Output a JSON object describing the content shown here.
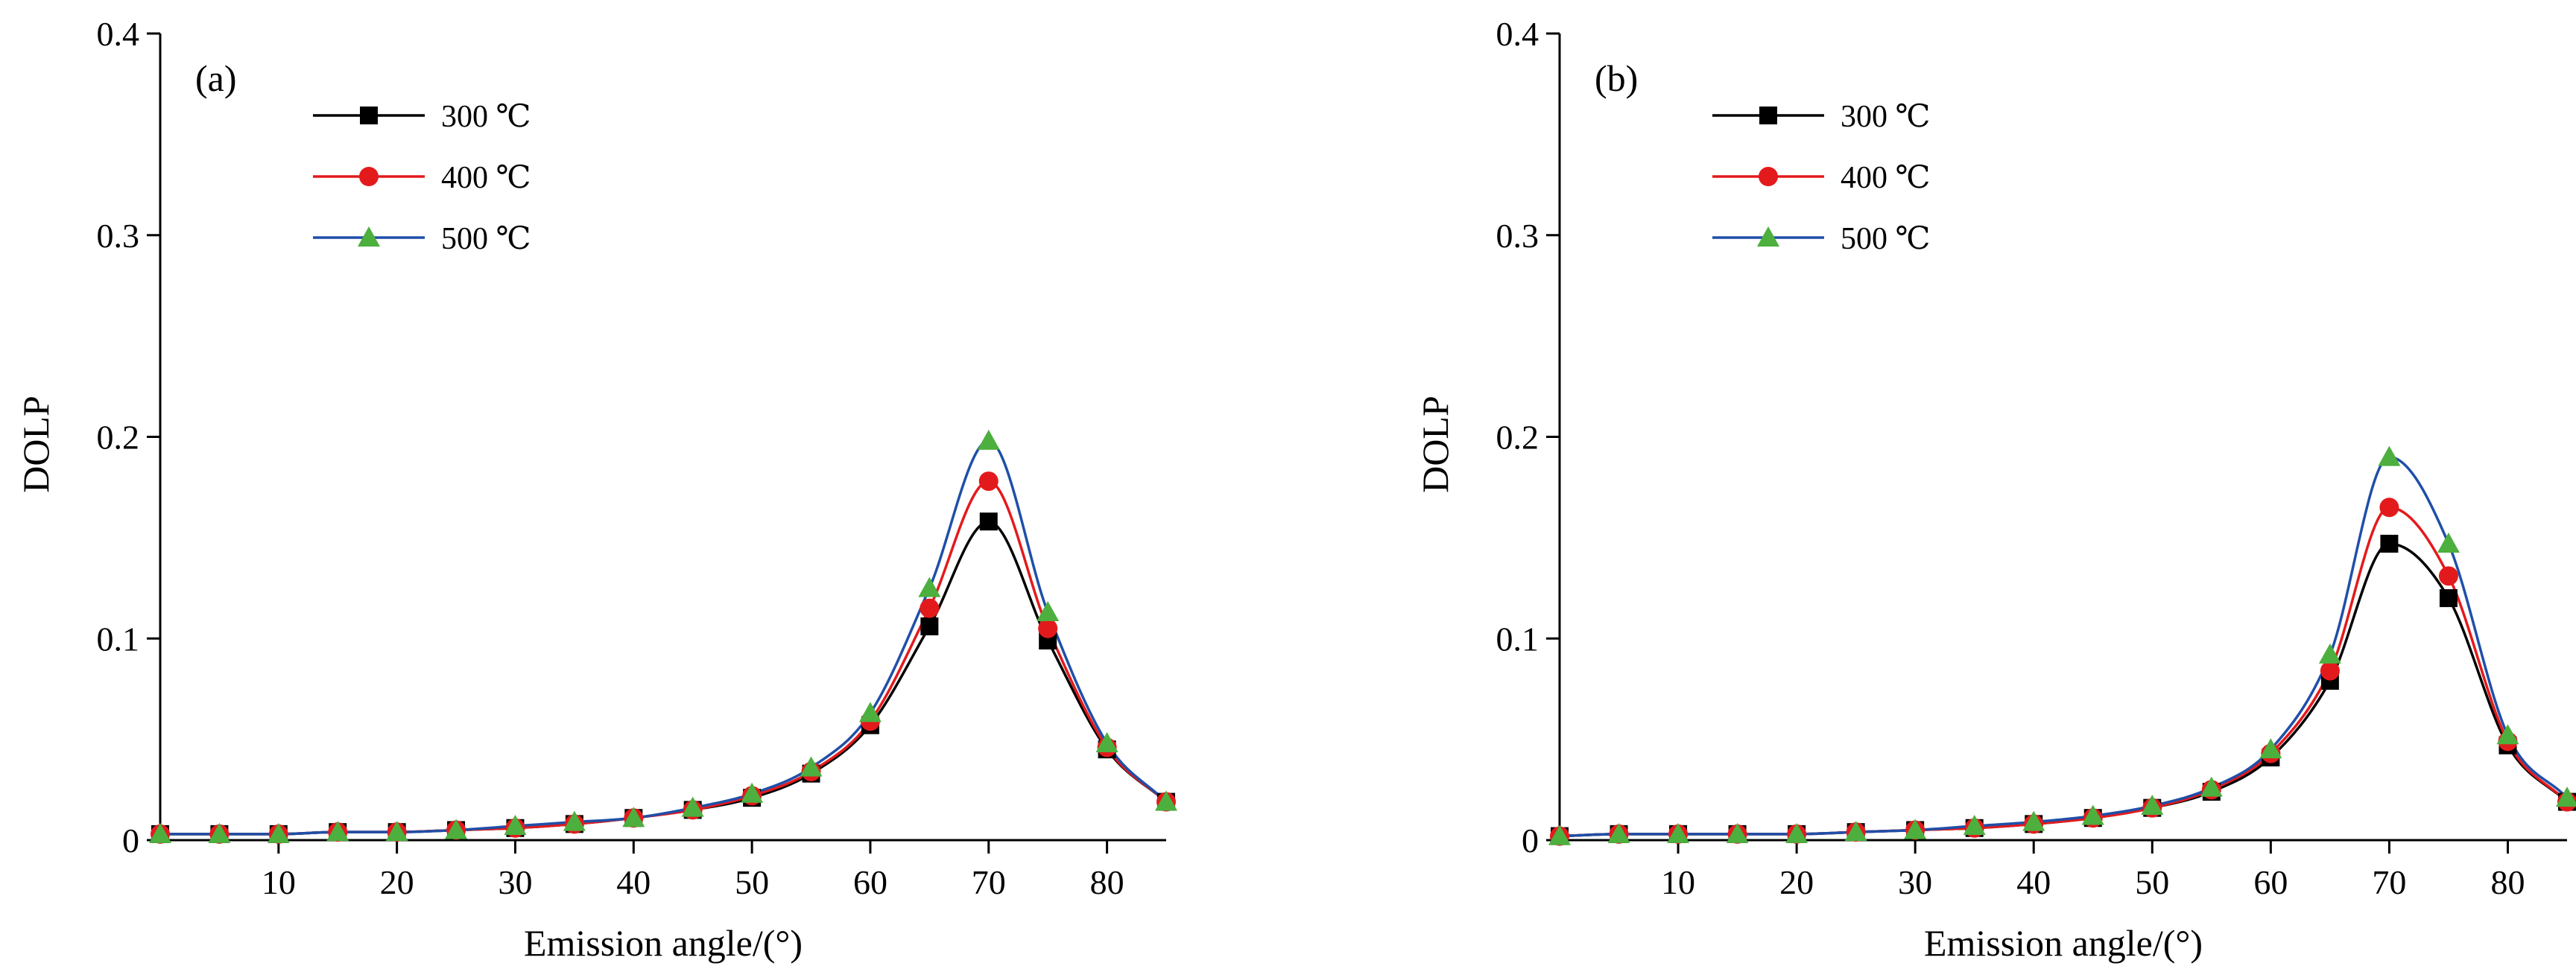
{
  "chart_data": [
    {
      "type": "line",
      "panel_label": "(a)",
      "xlabel": "Emission angle/(°)",
      "ylabel": "DOLP",
      "xlim": [
        0,
        85
      ],
      "ylim": [
        0,
        0.4
      ],
      "x_ticks": [
        10,
        20,
        30,
        40,
        50,
        60,
        70,
        80
      ],
      "y_ticks": [
        0,
        0.1,
        0.2,
        0.3,
        0.4
      ],
      "x_tick_labels": [
        "10",
        "20",
        "30",
        "40",
        "50",
        "60",
        "70",
        "80"
      ],
      "y_tick_labels": [
        "0",
        "0.1",
        "0.2",
        "0.3",
        "0.4"
      ],
      "legend_position": "top-left",
      "grid": false,
      "x": [
        0,
        5,
        10,
        15,
        20,
        25,
        30,
        35,
        40,
        45,
        50,
        55,
        60,
        65,
        70,
        75,
        80,
        85
      ],
      "series": [
        {
          "name": "300 ℃",
          "color": "#000000",
          "marker": "square",
          "values": [
            0.003,
            0.003,
            0.003,
            0.004,
            0.004,
            0.005,
            0.006,
            0.008,
            0.011,
            0.015,
            0.021,
            0.033,
            0.057,
            0.106,
            0.158,
            0.099,
            0.045,
            0.019
          ]
        },
        {
          "name": "400 ℃",
          "color": "#e31a1c",
          "marker": "circle",
          "values": [
            0.003,
            0.003,
            0.003,
            0.004,
            0.004,
            0.005,
            0.006,
            0.008,
            0.011,
            0.015,
            0.022,
            0.034,
            0.059,
            0.115,
            0.178,
            0.105,
            0.046,
            0.019
          ]
        },
        {
          "name": "500 ℃",
          "color": "#4caf3e",
          "line_color": "#1f4fa8",
          "marker": "triangle",
          "values": [
            0.003,
            0.003,
            0.003,
            0.004,
            0.004,
            0.005,
            0.007,
            0.009,
            0.011,
            0.016,
            0.023,
            0.036,
            0.063,
            0.125,
            0.198,
            0.113,
            0.048,
            0.019
          ]
        }
      ]
    },
    {
      "type": "line",
      "panel_label": "(b)",
      "xlabel": "Emission angle/(°)",
      "ylabel": "DOLP",
      "xlim": [
        0,
        85
      ],
      "ylim": [
        0,
        0.4
      ],
      "x_ticks": [
        10,
        20,
        30,
        40,
        50,
        60,
        70,
        80
      ],
      "y_ticks": [
        0,
        0.1,
        0.2,
        0.3,
        0.4
      ],
      "x_tick_labels": [
        "10",
        "20",
        "30",
        "40",
        "50",
        "60",
        "70",
        "80"
      ],
      "y_tick_labels": [
        "0",
        "0.1",
        "0.2",
        "0.3",
        "0.4"
      ],
      "legend_position": "top-left",
      "grid": false,
      "x": [
        0,
        5,
        10,
        15,
        20,
        25,
        30,
        35,
        40,
        45,
        50,
        55,
        60,
        65,
        70,
        75,
        80,
        85
      ],
      "series": [
        {
          "name": "300 ℃",
          "color": "#000000",
          "marker": "square",
          "values": [
            0.002,
            0.003,
            0.003,
            0.003,
            0.003,
            0.004,
            0.005,
            0.006,
            0.008,
            0.011,
            0.016,
            0.024,
            0.041,
            0.079,
            0.147,
            0.12,
            0.047,
            0.019
          ]
        },
        {
          "name": "400 ℃",
          "color": "#e31a1c",
          "marker": "circle",
          "values": [
            0.002,
            0.003,
            0.003,
            0.003,
            0.003,
            0.004,
            0.005,
            0.006,
            0.008,
            0.011,
            0.016,
            0.025,
            0.043,
            0.084,
            0.165,
            0.131,
            0.049,
            0.019
          ]
        },
        {
          "name": "500 ℃",
          "color": "#4caf3e",
          "line_color": "#1f4fa8",
          "marker": "triangle",
          "values": [
            0.002,
            0.003,
            0.003,
            0.003,
            0.003,
            0.004,
            0.005,
            0.007,
            0.009,
            0.012,
            0.017,
            0.026,
            0.045,
            0.092,
            0.19,
            0.147,
            0.052,
            0.021
          ]
        }
      ]
    }
  ]
}
